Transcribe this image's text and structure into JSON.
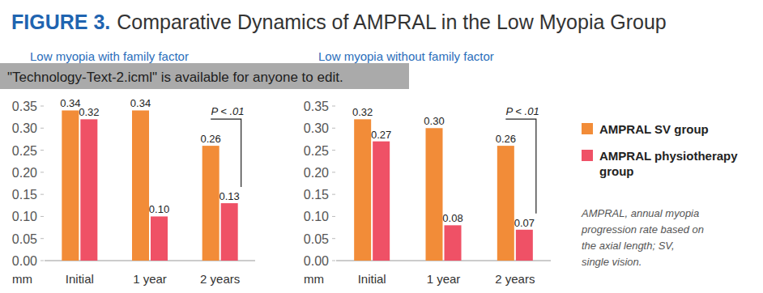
{
  "header": {
    "label": "FIGURE 3.",
    "title": "Comparative Dynamics of AMPRAL in the Low Myopia Group"
  },
  "overlay": "\"Technology-Text-2.icml\" is available for anyone to edit.",
  "footnote": "AMPRAL, annual myopia progression rate based on the axial length; SV, single vision.",
  "chart_data": [
    {
      "type": "bar",
      "title": "Low myopia with family factor",
      "y_label": "mm",
      "categories": [
        "Initial",
        "1 year",
        "2 years"
      ],
      "series": [
        {
          "color": "#f28c38",
          "values": [
            0.34,
            0.34,
            0.26
          ],
          "value_labels": [
            "0.34",
            "0.34",
            "0.26"
          ]
        },
        {
          "color": "#ef5166",
          "values": [
            0.32,
            0.1,
            0.13
          ],
          "value_labels": [
            "0.32",
            "0.10",
            "0.13"
          ]
        }
      ],
      "ylim": [
        0,
        0.35
      ],
      "yticks": [
        {
          "value": 0,
          "label": "0.00"
        },
        0.05,
        {
          "value": 0.1,
          "label": "0.10"
        },
        0.15,
        {
          "value": 0.2,
          "label": "0.20"
        },
        0.25,
        {
          "value": 0.3,
          "label": "0.30"
        },
        0.35
      ],
      "annotations": [
        {
          "text": "P < .01",
          "category": "2 years"
        }
      ],
      "data_labels": true,
      "grid": false
    },
    {
      "type": "bar",
      "title": "Low myopia without family factor",
      "y_label": "mm",
      "categories": [
        "Initial",
        "1 year",
        "2 years"
      ],
      "series": [
        {
          "name": "AMPRAL SV group",
          "color": "#f28c38",
          "values": [
            0.32,
            0.3,
            0.26
          ],
          "value_labels": [
            "0.32",
            "0.30",
            "0.26"
          ]
        },
        {
          "name": "AMPRAL physiotherapy group",
          "color": "#ef5166",
          "values": [
            0.27,
            0.08,
            0.07
          ],
          "value_labels": [
            "0.27",
            "0.08",
            "0.07"
          ]
        }
      ],
      "ylim": [
        0,
        0.35
      ],
      "yticks": [
        {
          "value": 0,
          "label": "0.00"
        },
        0.05,
        {
          "value": 0.1,
          "label": "0.10"
        },
        0.15,
        {
          "value": 0.2,
          "label": "0.20"
        },
        0.25,
        {
          "value": 0.3,
          "label": "0.30"
        },
        0.35
      ],
      "annotations": [
        {
          "text": "P < .01",
          "category": "2 years"
        }
      ],
      "data_labels": true,
      "grid": false,
      "legend": "right"
    }
  ]
}
